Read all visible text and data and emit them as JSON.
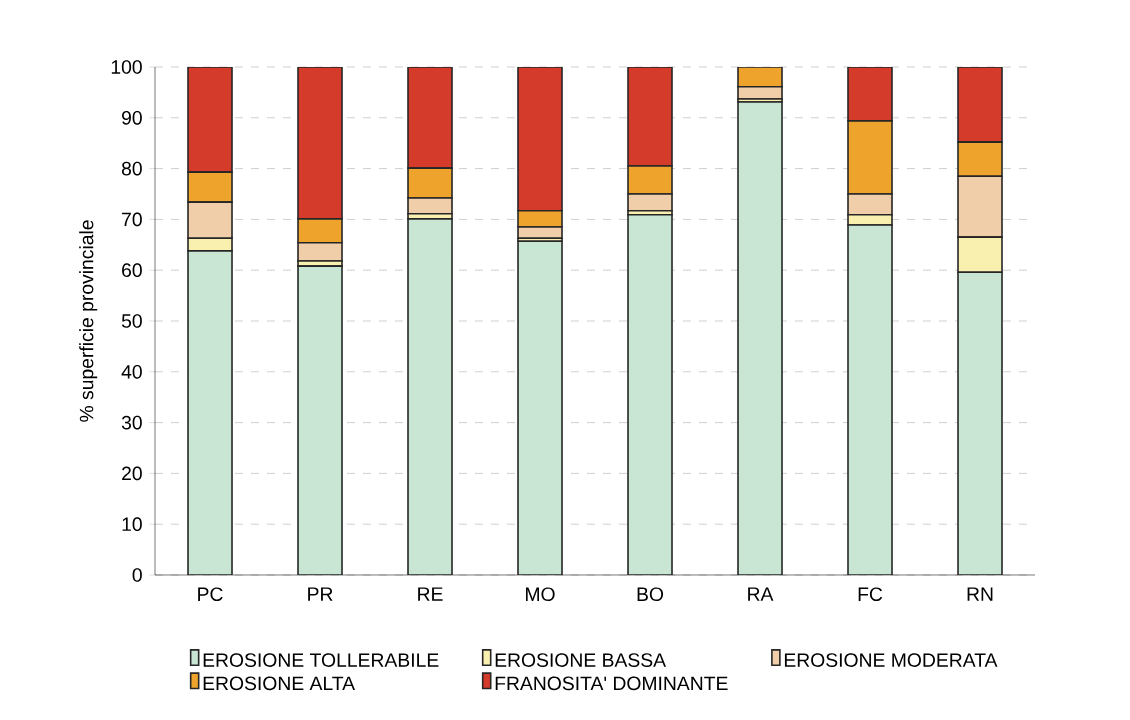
{
  "chart_data": {
    "type": "bar",
    "stacked": true,
    "ylabel": "% superficie provinciale",
    "categories": [
      "PC",
      "PR",
      "RE",
      "MO",
      "BO",
      "RA",
      "FC",
      "RN"
    ],
    "series": [
      {
        "name": "EROSIONE TOLLERABILE",
        "color": "#c9e6d4",
        "values": [
          63.8,
          60.8,
          70.1,
          65.7,
          70.9,
          93.1,
          68.9,
          59.6
        ]
      },
      {
        "name": "EROSIONE BASSA",
        "color": "#f9f0b0",
        "values": [
          2.5,
          1.0,
          1.0,
          0.6,
          0.8,
          0.6,
          2.0,
          6.9
        ]
      },
      {
        "name": "EROSIONE MODERATA",
        "color": "#f1ceaa",
        "values": [
          7.1,
          3.6,
          3.1,
          2.2,
          3.3,
          2.4,
          4.1,
          12.0
        ]
      },
      {
        "name": "EROSIONE ALTA",
        "color": "#eea42c",
        "values": [
          5.9,
          4.7,
          5.9,
          3.2,
          5.5,
          3.9,
          14.4,
          6.7
        ]
      },
      {
        "name": "FRANOSITA' DOMINANTE",
        "color": "#d43b2b",
        "values": [
          20.7,
          29.9,
          19.9,
          28.3,
          19.5,
          0,
          10.6,
          14.8
        ]
      }
    ],
    "ylim": [
      0,
      100
    ],
    "yticks": [
      0,
      10,
      20,
      30,
      40,
      50,
      60,
      70,
      80,
      90,
      100
    ],
    "grid": "y",
    "legend": "bottom"
  }
}
